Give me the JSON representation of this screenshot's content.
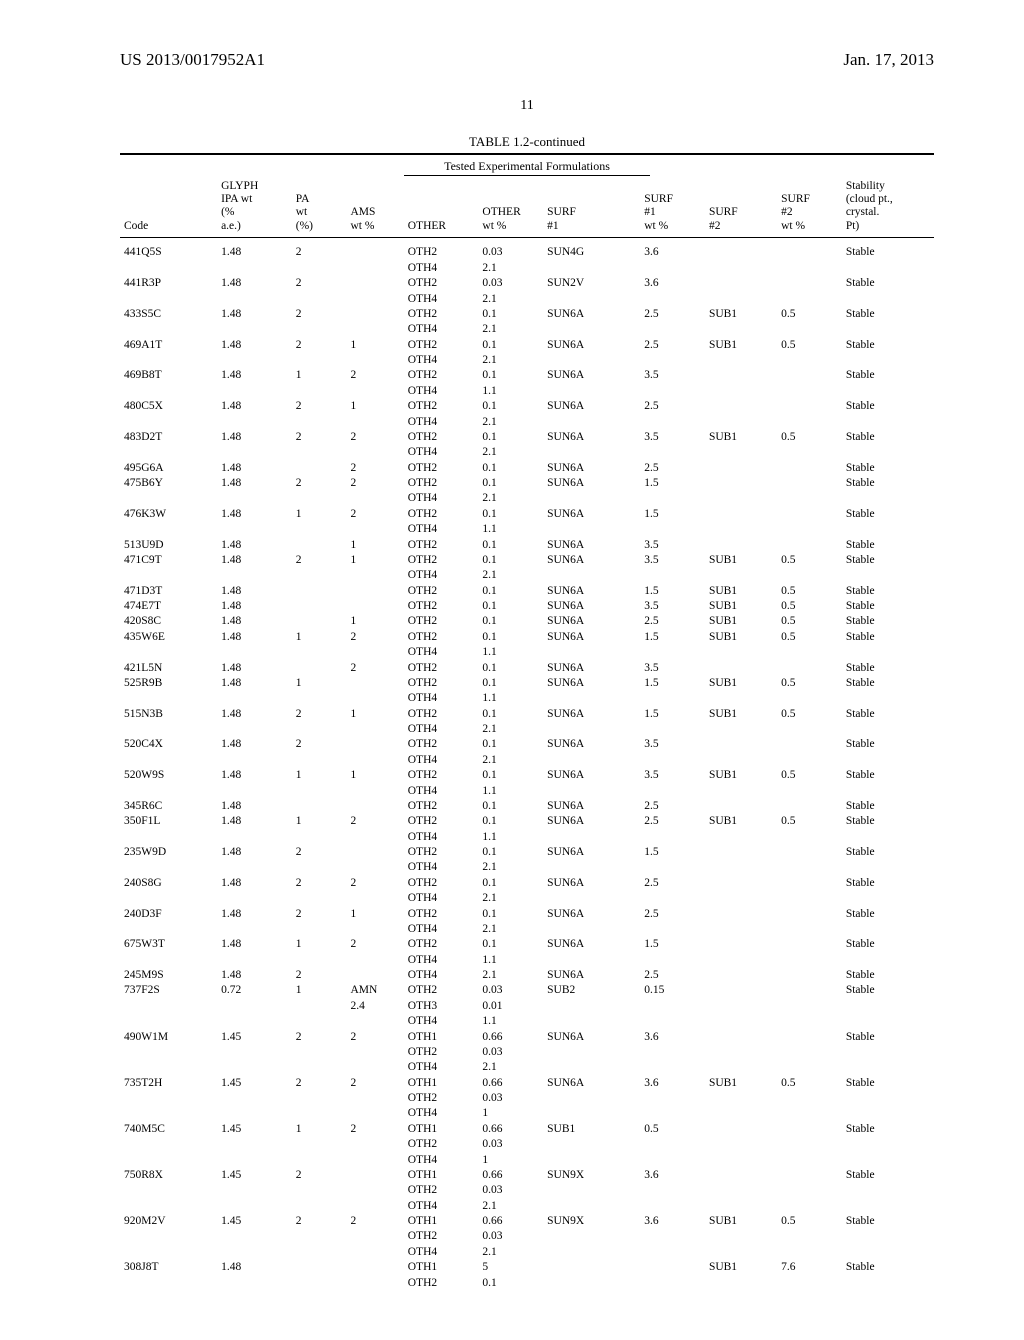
{
  "header": {
    "pub_no": "US 2013/0017952A1",
    "date": "Jan. 17, 2013"
  },
  "page_number": "11",
  "table": {
    "caption": "TABLE 1.2-continued",
    "subtitle": "Tested Experimental Formulations",
    "columns": {
      "code": "Code",
      "glyph": "GLYPH\nIPA wt\n(%\na.e.)",
      "pa": "PA\nwt\n(%)",
      "ams": "AMS\nwt %",
      "other": "OTHER",
      "other_wt": "OTHER\nwt %",
      "surf1": "SURF\n#1",
      "surf1_wt": "SURF\n#1\nwt %",
      "surf2": "SURF\n#2",
      "surf2_wt": "SURF\n#2\nwt %",
      "stability": "Stability\n(cloud pt.,\ncrystal.\nPt)"
    },
    "rows": [
      {
        "code": "441Q5S",
        "glyph": "1.48",
        "pa": "2",
        "ams": "",
        "other": [
          "OTH2",
          "OTH4"
        ],
        "owt": [
          "0.03",
          "2.1"
        ],
        "s1": "SUN4G",
        "s1wt": "3.6",
        "s2": "",
        "s2wt": "",
        "stab": "Stable"
      },
      {
        "code": "441R3P",
        "glyph": "1.48",
        "pa": "2",
        "ams": "",
        "other": [
          "OTH2",
          "OTH4"
        ],
        "owt": [
          "0.03",
          "2.1"
        ],
        "s1": "SUN2V",
        "s1wt": "3.6",
        "s2": "",
        "s2wt": "",
        "stab": "Stable"
      },
      {
        "code": "433S5C",
        "glyph": "1.48",
        "pa": "2",
        "ams": "",
        "other": [
          "OTH2",
          "OTH4"
        ],
        "owt": [
          "0.1",
          "2.1"
        ],
        "s1": "SUN6A",
        "s1wt": "2.5",
        "s2": "SUB1",
        "s2wt": "0.5",
        "stab": "Stable"
      },
      {
        "code": "469A1T",
        "glyph": "1.48",
        "pa": "2",
        "ams": "1",
        "other": [
          "OTH2",
          "OTH4"
        ],
        "owt": [
          "0.1",
          "2.1"
        ],
        "s1": "SUN6A",
        "s1wt": "2.5",
        "s2": "SUB1",
        "s2wt": "0.5",
        "stab": "Stable"
      },
      {
        "code": "469B8T",
        "glyph": "1.48",
        "pa": "1",
        "ams": "2",
        "other": [
          "OTH2",
          "OTH4"
        ],
        "owt": [
          "0.1",
          "1.1"
        ],
        "s1": "SUN6A",
        "s1wt": "3.5",
        "s2": "",
        "s2wt": "",
        "stab": "Stable"
      },
      {
        "code": "480C5X",
        "glyph": "1.48",
        "pa": "2",
        "ams": "1",
        "other": [
          "OTH2",
          "OTH4"
        ],
        "owt": [
          "0.1",
          "2.1"
        ],
        "s1": "SUN6A",
        "s1wt": "2.5",
        "s2": "",
        "s2wt": "",
        "stab": "Stable"
      },
      {
        "code": "483D2T",
        "glyph": "1.48",
        "pa": "2",
        "ams": "2",
        "other": [
          "OTH2",
          "OTH4"
        ],
        "owt": [
          "0.1",
          "2.1"
        ],
        "s1": "SUN6A",
        "s1wt": "3.5",
        "s2": "SUB1",
        "s2wt": "0.5",
        "stab": "Stable"
      },
      {
        "code": "495G6A",
        "glyph": "1.48",
        "pa": "",
        "ams": "2",
        "other": [
          "OTH2"
        ],
        "owt": [
          "0.1"
        ],
        "s1": "SUN6A",
        "s1wt": "2.5",
        "s2": "",
        "s2wt": "",
        "stab": "Stable"
      },
      {
        "code": "475B6Y",
        "glyph": "1.48",
        "pa": "2",
        "ams": "2",
        "other": [
          "OTH2",
          "OTH4"
        ],
        "owt": [
          "0.1",
          "2.1"
        ],
        "s1": "SUN6A",
        "s1wt": "1.5",
        "s2": "",
        "s2wt": "",
        "stab": "Stable"
      },
      {
        "code": "476K3W",
        "glyph": "1.48",
        "pa": "1",
        "ams": "2",
        "other": [
          "OTH2",
          "OTH4"
        ],
        "owt": [
          "0.1",
          "1.1"
        ],
        "s1": "SUN6A",
        "s1wt": "1.5",
        "s2": "",
        "s2wt": "",
        "stab": "Stable"
      },
      {
        "code": "513U9D",
        "glyph": "1.48",
        "pa": "",
        "ams": "1",
        "other": [
          "OTH2"
        ],
        "owt": [
          "0.1"
        ],
        "s1": "SUN6A",
        "s1wt": "3.5",
        "s2": "",
        "s2wt": "",
        "stab": "Stable"
      },
      {
        "code": "471C9T",
        "glyph": "1.48",
        "pa": "2",
        "ams": "1",
        "other": [
          "OTH2",
          "OTH4"
        ],
        "owt": [
          "0.1",
          "2.1"
        ],
        "s1": "SUN6A",
        "s1wt": "3.5",
        "s2": "SUB1",
        "s2wt": "0.5",
        "stab": "Stable"
      },
      {
        "code": "471D3T",
        "glyph": "1.48",
        "pa": "",
        "ams": "",
        "other": [
          "OTH2"
        ],
        "owt": [
          "0.1"
        ],
        "s1": "SUN6A",
        "s1wt": "1.5",
        "s2": "SUB1",
        "s2wt": "0.5",
        "stab": "Stable"
      },
      {
        "code": "474E7T",
        "glyph": "1.48",
        "pa": "",
        "ams": "",
        "other": [
          "OTH2"
        ],
        "owt": [
          "0.1"
        ],
        "s1": "SUN6A",
        "s1wt": "3.5",
        "s2": "SUB1",
        "s2wt": "0.5",
        "stab": "Stable"
      },
      {
        "code": "420S8C",
        "glyph": "1.48",
        "pa": "",
        "ams": "1",
        "other": [
          "OTH2"
        ],
        "owt": [
          "0.1"
        ],
        "s1": "SUN6A",
        "s1wt": "2.5",
        "s2": "SUB1",
        "s2wt": "0.5",
        "stab": "Stable"
      },
      {
        "code": "435W6E",
        "glyph": "1.48",
        "pa": "1",
        "ams": "2",
        "other": [
          "OTH2",
          "OTH4"
        ],
        "owt": [
          "0.1",
          "1.1"
        ],
        "s1": "SUN6A",
        "s1wt": "1.5",
        "s2": "SUB1",
        "s2wt": "0.5",
        "stab": "Stable"
      },
      {
        "code": "421L5N",
        "glyph": "1.48",
        "pa": "",
        "ams": "2",
        "other": [
          "OTH2"
        ],
        "owt": [
          "0.1"
        ],
        "s1": "SUN6A",
        "s1wt": "3.5",
        "s2": "",
        "s2wt": "",
        "stab": "Stable"
      },
      {
        "code": "525R9B",
        "glyph": "1.48",
        "pa": "1",
        "ams": "",
        "other": [
          "OTH2",
          "OTH4"
        ],
        "owt": [
          "0.1",
          "1.1"
        ],
        "s1": "SUN6A",
        "s1wt": "1.5",
        "s2": "SUB1",
        "s2wt": "0.5",
        "stab": "Stable"
      },
      {
        "code": "515N3B",
        "glyph": "1.48",
        "pa": "2",
        "ams": "1",
        "other": [
          "OTH2",
          "OTH4"
        ],
        "owt": [
          "0.1",
          "2.1"
        ],
        "s1": "SUN6A",
        "s1wt": "1.5",
        "s2": "SUB1",
        "s2wt": "0.5",
        "stab": "Stable"
      },
      {
        "code": "520C4X",
        "glyph": "1.48",
        "pa": "2",
        "ams": "",
        "other": [
          "OTH2",
          "OTH4"
        ],
        "owt": [
          "0.1",
          "2.1"
        ],
        "s1": "SUN6A",
        "s1wt": "3.5",
        "s2": "",
        "s2wt": "",
        "stab": "Stable"
      },
      {
        "code": "520W9S",
        "glyph": "1.48",
        "pa": "1",
        "ams": "1",
        "other": [
          "OTH2",
          "OTH4"
        ],
        "owt": [
          "0.1",
          "1.1"
        ],
        "s1": "SUN6A",
        "s1wt": "3.5",
        "s2": "SUB1",
        "s2wt": "0.5",
        "stab": "Stable"
      },
      {
        "code": "345R6C",
        "glyph": "1.48",
        "pa": "",
        "ams": "",
        "other": [
          "OTH2"
        ],
        "owt": [
          "0.1"
        ],
        "s1": "SUN6A",
        "s1wt": "2.5",
        "s2": "",
        "s2wt": "",
        "stab": "Stable"
      },
      {
        "code": "350F1L",
        "glyph": "1.48",
        "pa": "1",
        "ams": "2",
        "other": [
          "OTH2",
          "OTH4"
        ],
        "owt": [
          "0.1",
          "1.1"
        ],
        "s1": "SUN6A",
        "s1wt": "2.5",
        "s2": "SUB1",
        "s2wt": "0.5",
        "stab": "Stable"
      },
      {
        "code": "235W9D",
        "glyph": "1.48",
        "pa": "2",
        "ams": "",
        "other": [
          "OTH2",
          "OTH4"
        ],
        "owt": [
          "0.1",
          "2.1"
        ],
        "s1": "SUN6A",
        "s1wt": "1.5",
        "s2": "",
        "s2wt": "",
        "stab": "Stable"
      },
      {
        "code": "240S8G",
        "glyph": "1.48",
        "pa": "2",
        "ams": "2",
        "other": [
          "OTH2",
          "OTH4"
        ],
        "owt": [
          "0.1",
          "2.1"
        ],
        "s1": "SUN6A",
        "s1wt": "2.5",
        "s2": "",
        "s2wt": "",
        "stab": "Stable"
      },
      {
        "code": "240D3F",
        "glyph": "1.48",
        "pa": "2",
        "ams": "1",
        "other": [
          "OTH2",
          "OTH4"
        ],
        "owt": [
          "0.1",
          "2.1"
        ],
        "s1": "SUN6A",
        "s1wt": "2.5",
        "s2": "",
        "s2wt": "",
        "stab": "Stable"
      },
      {
        "code": "675W3T",
        "glyph": "1.48",
        "pa": "1",
        "ams": "2",
        "other": [
          "OTH2",
          "OTH4"
        ],
        "owt": [
          "0.1",
          "1.1"
        ],
        "s1": "SUN6A",
        "s1wt": "1.5",
        "s2": "",
        "s2wt": "",
        "stab": "Stable"
      },
      {
        "code": "245M9S",
        "glyph": "1.48",
        "pa": "2",
        "ams": "",
        "other": [
          "OTH4"
        ],
        "owt": [
          "2.1"
        ],
        "s1": "SUN6A",
        "s1wt": "2.5",
        "s2": "",
        "s2wt": "",
        "stab": "Stable"
      },
      {
        "code": "737F2S",
        "glyph": "0.72",
        "pa": "1",
        "ams": "AMN\n2.4",
        "other": [
          "OTH2",
          "OTH3",
          "OTH4"
        ],
        "owt": [
          "0.03",
          "0.01",
          "1.1"
        ],
        "s1": "SUB2",
        "s1wt": "0.15",
        "s2": "",
        "s2wt": "",
        "stab": "Stable"
      },
      {
        "code": "490W1M",
        "glyph": "1.45",
        "pa": "2",
        "ams": "2",
        "other": [
          "OTH1",
          "OTH2",
          "OTH4"
        ],
        "owt": [
          "0.66",
          "0.03",
          "2.1"
        ],
        "s1": "SUN6A",
        "s1wt": "3.6",
        "s2": "",
        "s2wt": "",
        "stab": "Stable"
      },
      {
        "code": "735T2H",
        "glyph": "1.45",
        "pa": "2",
        "ams": "2",
        "other": [
          "OTH1",
          "OTH2",
          "OTH4"
        ],
        "owt": [
          "0.66",
          "0.03",
          "1"
        ],
        "s1": "SUN6A",
        "s1wt": "3.6",
        "s2": "SUB1",
        "s2wt": "0.5",
        "stab": "Stable"
      },
      {
        "code": "740M5C",
        "glyph": "1.45",
        "pa": "1",
        "ams": "2",
        "other": [
          "OTH1",
          "OTH2",
          "OTH4"
        ],
        "owt": [
          "0.66",
          "0.03",
          "1"
        ],
        "s1": "SUB1",
        "s1wt": "0.5",
        "s2": "",
        "s2wt": "",
        "stab": "Stable"
      },
      {
        "code": "750R8X",
        "glyph": "1.45",
        "pa": "2",
        "ams": "",
        "other": [
          "OTH1",
          "OTH2",
          "OTH4"
        ],
        "owt": [
          "0.66",
          "0.03",
          "2.1"
        ],
        "s1": "SUN9X",
        "s1wt": "3.6",
        "s2": "",
        "s2wt": "",
        "stab": "Stable"
      },
      {
        "code": "920M2V",
        "glyph": "1.45",
        "pa": "2",
        "ams": "2",
        "other": [
          "OTH1",
          "OTH2",
          "OTH4"
        ],
        "owt": [
          "0.66",
          "0.03",
          "2.1"
        ],
        "s1": "SUN9X",
        "s1wt": "3.6",
        "s2": "SUB1",
        "s2wt": "0.5",
        "stab": "Stable"
      },
      {
        "code": "308J8T",
        "glyph": "1.48",
        "pa": "",
        "ams": "",
        "other": [
          "OTH1",
          "OTH2"
        ],
        "owt": [
          "5",
          "0.1"
        ],
        "s1": "",
        "s1wt": "",
        "s2": "SUB1",
        "s2wt": "7.6",
        "stab": "Stable"
      }
    ]
  }
}
